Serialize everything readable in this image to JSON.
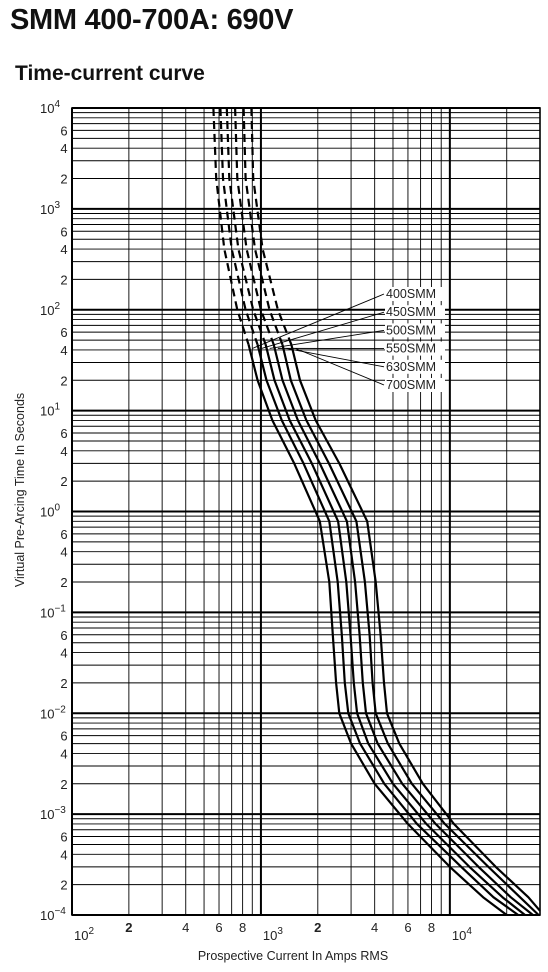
{
  "header": {
    "title": "SMM 400-700A: 690V",
    "subtitle": "Time-current curve"
  },
  "chart_data": {
    "type": "line",
    "xscale": "log",
    "yscale": "log",
    "xlim": [
      100,
      30000
    ],
    "ylim": [
      0.0001,
      10000
    ],
    "xlabel": "Prospective Current In Amps RMS",
    "ylabel": "Virtual Pre-Arcing Time In Seconds",
    "grid": true,
    "x_major_ticks": [
      {
        "value": 100,
        "base": "10",
        "exp": "2"
      },
      {
        "value": 1000,
        "base": "10",
        "exp": "3"
      },
      {
        "value": 10000,
        "base": "10",
        "exp": "4"
      }
    ],
    "x_minor_ticks": [
      {
        "value": 200,
        "label": "2"
      },
      {
        "value": 400,
        "label": "4"
      },
      {
        "value": 600,
        "label": "6"
      },
      {
        "value": 800,
        "label": "8"
      },
      {
        "value": 2000,
        "label": "2"
      },
      {
        "value": 4000,
        "label": "4"
      },
      {
        "value": 6000,
        "label": "6"
      },
      {
        "value": 8000,
        "label": "8"
      }
    ],
    "y_major_ticks": [
      {
        "value": 10000,
        "base": "10",
        "exp": "4"
      },
      {
        "value": 1000,
        "base": "10",
        "exp": "3"
      },
      {
        "value": 100,
        "base": "10",
        "exp": "2"
      },
      {
        "value": 10,
        "base": "10",
        "exp": "1"
      },
      {
        "value": 1,
        "base": "10",
        "exp": "0"
      },
      {
        "value": 0.1,
        "base": "10",
        "exp": "−1"
      },
      {
        "value": 0.01,
        "base": "10",
        "exp": "−2"
      },
      {
        "value": 0.001,
        "base": "10",
        "exp": "−3"
      },
      {
        "value": 0.0001,
        "base": "10",
        "exp": "−4"
      }
    ],
    "y_minor_ticks": [
      {
        "value": 6000,
        "label": "6"
      },
      {
        "value": 4000,
        "label": "4"
      },
      {
        "value": 2000,
        "label": "2"
      },
      {
        "value": 600,
        "label": "6"
      },
      {
        "value": 400,
        "label": "4"
      },
      {
        "value": 200,
        "label": "2"
      },
      {
        "value": 60,
        "label": "6"
      },
      {
        "value": 40,
        "label": "4"
      },
      {
        "value": 20,
        "label": "2"
      },
      {
        "value": 6,
        "label": "6"
      },
      {
        "value": 4,
        "label": "4"
      },
      {
        "value": 2,
        "label": "2"
      },
      {
        "value": 0.6,
        "label": "6"
      },
      {
        "value": 0.4,
        "label": "4"
      },
      {
        "value": 0.2,
        "label": "2"
      },
      {
        "value": 0.06,
        "label": "6"
      },
      {
        "value": 0.04,
        "label": "4"
      },
      {
        "value": 0.02,
        "label": "2"
      },
      {
        "value": 0.006,
        "label": "6"
      },
      {
        "value": 0.004,
        "label": "4"
      },
      {
        "value": 0.002,
        "label": "2"
      },
      {
        "value": 0.0006,
        "label": "6"
      },
      {
        "value": 0.0004,
        "label": "4"
      },
      {
        "value": 0.0002,
        "label": "2"
      }
    ],
    "series": [
      {
        "name": "400SMM",
        "dashed": [
          [
            560,
            10000
          ],
          [
            580,
            2000
          ],
          [
            640,
            400
          ],
          [
            750,
            100
          ],
          [
            860,
            45
          ]
        ],
        "solid": [
          [
            860,
            45
          ],
          [
            960,
            20
          ],
          [
            1150,
            8
          ],
          [
            1500,
            3
          ],
          [
            2050,
            0.8
          ],
          [
            2300,
            0.2
          ],
          [
            2400,
            0.06
          ],
          [
            2500,
            0.02
          ],
          [
            2600,
            0.01
          ],
          [
            3000,
            0.005
          ],
          [
            4000,
            0.002
          ],
          [
            6000,
            0.0008
          ],
          [
            10000,
            0.0003
          ],
          [
            15000,
            0.00015
          ],
          [
            20000,
            0.0001
          ]
        ]
      },
      {
        "name": "450SMM",
        "dashed": [
          [
            610,
            10000
          ],
          [
            630,
            2000
          ],
          [
            700,
            400
          ],
          [
            830,
            100
          ],
          [
            960,
            45
          ]
        ],
        "solid": [
          [
            960,
            45
          ],
          [
            1070,
            20
          ],
          [
            1290,
            8
          ],
          [
            1680,
            3
          ],
          [
            2300,
            0.8
          ],
          [
            2550,
            0.2
          ],
          [
            2680,
            0.06
          ],
          [
            2780,
            0.02
          ],
          [
            2900,
            0.01
          ],
          [
            3350,
            0.005
          ],
          [
            4500,
            0.002
          ],
          [
            6700,
            0.0008
          ],
          [
            11500,
            0.0003
          ],
          [
            17000,
            0.00015
          ],
          [
            23000,
            0.0001
          ]
        ]
      },
      {
        "name": "500SMM",
        "dashed": [
          [
            660,
            10000
          ],
          [
            680,
            2000
          ],
          [
            760,
            400
          ],
          [
            910,
            100
          ],
          [
            1060,
            45
          ]
        ],
        "solid": [
          [
            1060,
            45
          ],
          [
            1180,
            20
          ],
          [
            1420,
            8
          ],
          [
            1860,
            3
          ],
          [
            2560,
            0.8
          ],
          [
            2830,
            0.2
          ],
          [
            2980,
            0.06
          ],
          [
            3100,
            0.02
          ],
          [
            3230,
            0.01
          ],
          [
            3700,
            0.005
          ],
          [
            5000,
            0.002
          ],
          [
            7500,
            0.0008
          ],
          [
            12700,
            0.0003
          ],
          [
            19000,
            0.00015
          ],
          [
            25000,
            0.0001
          ]
        ]
      },
      {
        "name": "550SMM",
        "dashed": [
          [
            730,
            10000
          ],
          [
            750,
            2000
          ],
          [
            840,
            400
          ],
          [
            1000,
            100
          ],
          [
            1170,
            45
          ]
        ],
        "solid": [
          [
            1170,
            45
          ],
          [
            1300,
            20
          ],
          [
            1570,
            8
          ],
          [
            2050,
            3
          ],
          [
            2850,
            0.8
          ],
          [
            3150,
            0.2
          ],
          [
            3330,
            0.06
          ],
          [
            3460,
            0.02
          ],
          [
            3600,
            0.01
          ],
          [
            4150,
            0.005
          ],
          [
            5600,
            0.002
          ],
          [
            8400,
            0.0008
          ],
          [
            14200,
            0.0003
          ],
          [
            21000,
            0.00015
          ],
          [
            27500,
            0.0001
          ]
        ]
      },
      {
        "name": "630SMM",
        "dashed": [
          [
            810,
            10000
          ],
          [
            830,
            2000
          ],
          [
            930,
            400
          ],
          [
            1110,
            100
          ],
          [
            1300,
            45
          ]
        ],
        "solid": [
          [
            1300,
            45
          ],
          [
            1440,
            20
          ],
          [
            1740,
            8
          ],
          [
            2290,
            3
          ],
          [
            3200,
            0.8
          ],
          [
            3550,
            0.2
          ],
          [
            3760,
            0.06
          ],
          [
            3900,
            0.02
          ],
          [
            4050,
            0.01
          ],
          [
            4700,
            0.005
          ],
          [
            6300,
            0.002
          ],
          [
            9400,
            0.0008
          ],
          [
            16000,
            0.0003
          ],
          [
            23500,
            0.00015
          ],
          [
            29500,
            0.0001
          ]
        ]
      },
      {
        "name": "700SMM",
        "dashed": [
          [
            890,
            10000
          ],
          [
            910,
            2000
          ],
          [
            1020,
            400
          ],
          [
            1230,
            100
          ],
          [
            1450,
            45
          ]
        ],
        "solid": [
          [
            1450,
            45
          ],
          [
            1610,
            20
          ],
          [
            1950,
            8
          ],
          [
            2600,
            3
          ],
          [
            3650,
            0.8
          ],
          [
            4050,
            0.2
          ],
          [
            4300,
            0.06
          ],
          [
            4480,
            0.02
          ],
          [
            4650,
            0.01
          ],
          [
            5400,
            0.005
          ],
          [
            7200,
            0.002
          ],
          [
            10500,
            0.0008
          ],
          [
            17500,
            0.0003
          ],
          [
            26000,
            0.00015
          ],
          [
            30000,
            0.00011
          ]
        ]
      }
    ],
    "legend_placement": "top-right inside plot, with leader lines to each curve"
  }
}
